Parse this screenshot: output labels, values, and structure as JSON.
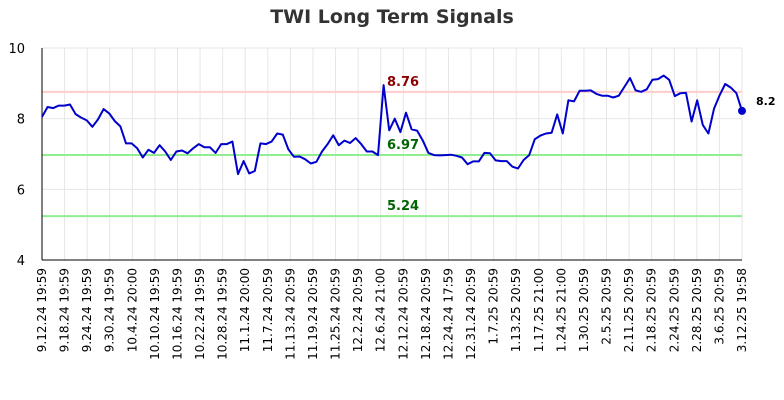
{
  "chart_data": {
    "type": "line",
    "title": "TWI Long Term Signals",
    "xlabel": "",
    "ylabel": "",
    "ylim": [
      4,
      10
    ],
    "y_ticks": [
      4,
      6,
      8,
      10
    ],
    "grid": true,
    "x_tick_labels": [
      "9.12.24 19:59",
      "9.18.24 19:59",
      "9.24.24 19:59",
      "9.30.24 19:59",
      "10.4.24 20:00",
      "10.10.24 19:59",
      "10.16.24 19:59",
      "10.22.24 19:59",
      "10.28.24 19:59",
      "11.1.24 20:00",
      "11.7.24 20:59",
      "11.13.24 20:59",
      "11.19.24 20:59",
      "11.25.24 20:59",
      "12.2.24 20:59",
      "12.6.24 21:00",
      "12.12.24 20:59",
      "12.18.24 20:59",
      "12.24.24 17:59",
      "12.31.24 20:59",
      "1.7.25 20:59",
      "1.13.25 20:59",
      "1.17.25 21:00",
      "1.24.25 21:00",
      "1.30.25 20:59",
      "2.5.25 20:59",
      "2.11.25 20:59",
      "2.18.25 20:59",
      "2.24.25 20:59",
      "2.28.25 20:59",
      "3.6.25 20:59",
      "3.12.25 19:58"
    ],
    "reference_lines": [
      {
        "value": 8.76,
        "label": "8.76",
        "line_color": "#ffcccc",
        "label_color": "#8b0000"
      },
      {
        "value": 6.97,
        "label": "6.97",
        "line_color": "#90ee90",
        "label_color": "#006400"
      },
      {
        "value": 5.24,
        "label": "5.24",
        "line_color": "#90ee90",
        "label_color": "#006400"
      }
    ],
    "series": [
      {
        "color": "#0000cc",
        "values": [
          8.05,
          8.33,
          8.3,
          8.37,
          8.37,
          8.4,
          8.13,
          8.03,
          7.95,
          7.77,
          7.98,
          8.27,
          8.15,
          7.93,
          7.78,
          7.3,
          7.3,
          7.16,
          6.9,
          7.12,
          7.03,
          7.25,
          7.07,
          6.83,
          7.07,
          7.1,
          7.02,
          7.16,
          7.28,
          7.19,
          7.19,
          7.03,
          7.28,
          7.28,
          7.35,
          6.43,
          6.8,
          6.45,
          6.52,
          7.3,
          7.28,
          7.35,
          7.58,
          7.55,
          7.13,
          6.92,
          6.93,
          6.85,
          6.73,
          6.78,
          7.07,
          7.28,
          7.53,
          7.25,
          7.38,
          7.31,
          7.45,
          7.28,
          7.07,
          7.07,
          6.97,
          8.95,
          7.67,
          8.0,
          7.62,
          8.17,
          7.7,
          7.66,
          7.38,
          7.03,
          6.97,
          6.96,
          6.97,
          6.98,
          6.95,
          6.9,
          6.71,
          6.79,
          6.79,
          7.03,
          7.02,
          6.82,
          6.8,
          6.8,
          6.64,
          6.59,
          6.83,
          6.97,
          7.42,
          7.52,
          7.58,
          7.6,
          8.12,
          7.58,
          8.52,
          8.49,
          8.79,
          8.79,
          8.8,
          8.7,
          8.65,
          8.65,
          8.6,
          8.65,
          8.9,
          9.15,
          8.8,
          8.76,
          8.83,
          9.1,
          9.12,
          9.22,
          9.1,
          8.64,
          8.72,
          8.73,
          7.92,
          8.52,
          7.82,
          7.58,
          8.28,
          8.66,
          8.98,
          8.88,
          8.72,
          8.22
        ],
        "last_value_label": "8.2"
      }
    ]
  }
}
